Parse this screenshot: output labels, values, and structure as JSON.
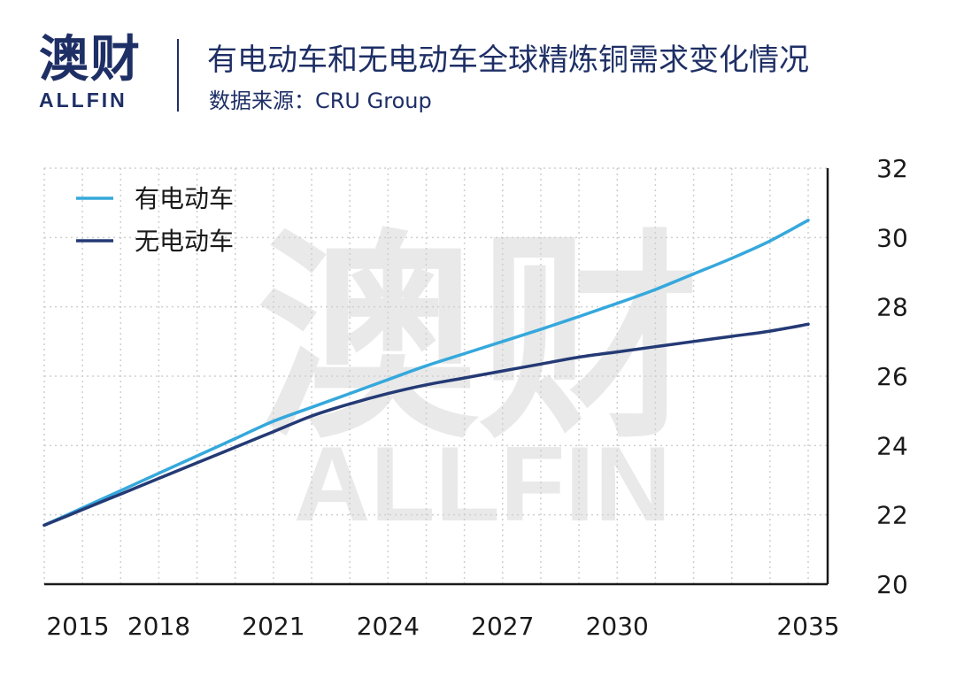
{
  "brand": {
    "name_cn": "澳财",
    "name_en": "ALLFIN"
  },
  "header": {
    "title": "有电动车和无电动车全球精炼铜需求变化情况",
    "subtitle": "数据来源：CRU Group"
  },
  "watermark": {
    "cn": "澳财",
    "en": "ALLFIN"
  },
  "colors": {
    "brand": "#1e2f66",
    "series_ev": "#35a8dc",
    "series_no_ev": "#243a75",
    "grid": "#cfcfcf",
    "watermark": "#e9e9e9"
  },
  "chart_data": {
    "type": "line",
    "x": [
      2015,
      2016,
      2017,
      2018,
      2019,
      2020,
      2021,
      2022,
      2023,
      2024,
      2025,
      2026,
      2027,
      2028,
      2029,
      2030,
      2031,
      2032,
      2033,
      2034,
      2035
    ],
    "x_tick_labels": [
      "2015",
      "2018",
      "2021",
      "2024",
      "2027",
      "2030",
      "2035"
    ],
    "yticks": [
      20,
      22,
      24,
      26,
      28,
      30,
      32
    ],
    "ylim": [
      20,
      32
    ],
    "y_axis_side": "right",
    "grid": true,
    "legend_position": "top-left",
    "series": [
      {
        "name": "有电动车",
        "color": "#35a8dc",
        "values": [
          21.7,
          22.2,
          22.7,
          23.2,
          23.7,
          24.2,
          24.7,
          25.1,
          25.5,
          25.9,
          26.3,
          26.65,
          27.0,
          27.35,
          27.72,
          28.1,
          28.5,
          28.95,
          29.4,
          29.9,
          30.5
        ]
      },
      {
        "name": "无电动车",
        "color": "#243a75",
        "values": [
          21.7,
          22.15,
          22.6,
          23.05,
          23.5,
          23.95,
          24.4,
          24.85,
          25.2,
          25.5,
          25.75,
          25.95,
          26.15,
          26.35,
          26.55,
          26.7,
          26.85,
          27.0,
          27.15,
          27.3,
          27.5
        ]
      }
    ]
  }
}
